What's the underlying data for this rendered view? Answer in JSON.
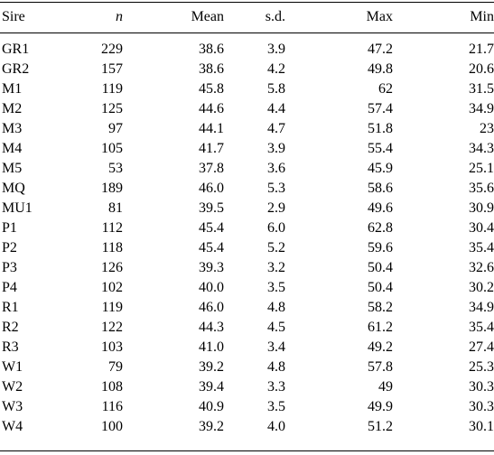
{
  "table": {
    "headers": [
      "Sire",
      "n",
      "Mean",
      "s.d.",
      "Max",
      "Min"
    ],
    "rows": [
      [
        "GR1",
        "229",
        "38.6",
        "3.9",
        "47.2",
        "21.7"
      ],
      [
        "GR2",
        "157",
        "38.6",
        "4.2",
        "49.8",
        "20.6"
      ],
      [
        "M1",
        "119",
        "45.8",
        "5.8",
        "62",
        "31.5"
      ],
      [
        "M2",
        "125",
        "44.6",
        "4.4",
        "57.4",
        "34.9"
      ],
      [
        "M3",
        "97",
        "44.1",
        "4.7",
        "51.8",
        "23"
      ],
      [
        "M4",
        "105",
        "41.7",
        "3.9",
        "55.4",
        "34.3"
      ],
      [
        "M5",
        "53",
        "37.8",
        "3.6",
        "45.9",
        "25.1"
      ],
      [
        "MQ",
        "189",
        "46.0",
        "5.3",
        "58.6",
        "35.6"
      ],
      [
        "MU1",
        "81",
        "39.5",
        "2.9",
        "49.6",
        "30.9"
      ],
      [
        "P1",
        "112",
        "45.4",
        "6.0",
        "62.8",
        "30.4"
      ],
      [
        "P2",
        "118",
        "45.4",
        "5.2",
        "59.6",
        "35.4"
      ],
      [
        "P3",
        "126",
        "39.3",
        "3.2",
        "50.4",
        "32.6"
      ],
      [
        "P4",
        "102",
        "40.0",
        "3.5",
        "50.4",
        "30.2"
      ],
      [
        "R1",
        "119",
        "46.0",
        "4.8",
        "58.2",
        "34.9"
      ],
      [
        "R2",
        "122",
        "44.3",
        "4.5",
        "61.2",
        "35.4"
      ],
      [
        "R3",
        "103",
        "41.0",
        "3.4",
        "49.2",
        "27.4"
      ],
      [
        "W1",
        "79",
        "39.2",
        "4.8",
        "57.8",
        "25.3"
      ],
      [
        "W2",
        "108",
        "39.4",
        "3.3",
        "49",
        "30.3"
      ],
      [
        "W3",
        "116",
        "40.9",
        "3.5",
        "49.9",
        "30.3"
      ],
      [
        "W4",
        "100",
        "39.2",
        "4.0",
        "51.2",
        "30.1"
      ]
    ]
  }
}
